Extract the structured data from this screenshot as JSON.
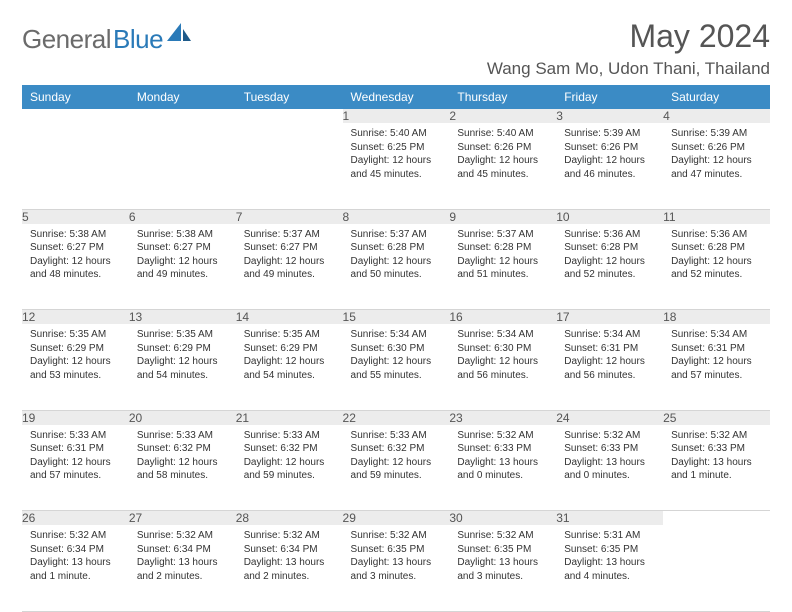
{
  "logo": {
    "gray": "General",
    "blue": "Blue"
  },
  "title": "May 2024",
  "location": "Wang Sam Mo, Udon Thani, Thailand",
  "weekdays": [
    "Sunday",
    "Monday",
    "Tuesday",
    "Wednesday",
    "Thursday",
    "Friday",
    "Saturday"
  ],
  "colors": {
    "header_bg": "#3b8bc5",
    "daynum_bg": "#ececec",
    "logo_gray": "#6b6b6b",
    "logo_blue": "#2a7ab8"
  },
  "weeks": [
    [
      null,
      null,
      null,
      {
        "n": "1",
        "sr": "5:40 AM",
        "ss": "6:25 PM",
        "dl": "12 hours and 45 minutes."
      },
      {
        "n": "2",
        "sr": "5:40 AM",
        "ss": "6:26 PM",
        "dl": "12 hours and 45 minutes."
      },
      {
        "n": "3",
        "sr": "5:39 AM",
        "ss": "6:26 PM",
        "dl": "12 hours and 46 minutes."
      },
      {
        "n": "4",
        "sr": "5:39 AM",
        "ss": "6:26 PM",
        "dl": "12 hours and 47 minutes."
      }
    ],
    [
      {
        "n": "5",
        "sr": "5:38 AM",
        "ss": "6:27 PM",
        "dl": "12 hours and 48 minutes."
      },
      {
        "n": "6",
        "sr": "5:38 AM",
        "ss": "6:27 PM",
        "dl": "12 hours and 49 minutes."
      },
      {
        "n": "7",
        "sr": "5:37 AM",
        "ss": "6:27 PM",
        "dl": "12 hours and 49 minutes."
      },
      {
        "n": "8",
        "sr": "5:37 AM",
        "ss": "6:28 PM",
        "dl": "12 hours and 50 minutes."
      },
      {
        "n": "9",
        "sr": "5:37 AM",
        "ss": "6:28 PM",
        "dl": "12 hours and 51 minutes."
      },
      {
        "n": "10",
        "sr": "5:36 AM",
        "ss": "6:28 PM",
        "dl": "12 hours and 52 minutes."
      },
      {
        "n": "11",
        "sr": "5:36 AM",
        "ss": "6:28 PM",
        "dl": "12 hours and 52 minutes."
      }
    ],
    [
      {
        "n": "12",
        "sr": "5:35 AM",
        "ss": "6:29 PM",
        "dl": "12 hours and 53 minutes."
      },
      {
        "n": "13",
        "sr": "5:35 AM",
        "ss": "6:29 PM",
        "dl": "12 hours and 54 minutes."
      },
      {
        "n": "14",
        "sr": "5:35 AM",
        "ss": "6:29 PM",
        "dl": "12 hours and 54 minutes."
      },
      {
        "n": "15",
        "sr": "5:34 AM",
        "ss": "6:30 PM",
        "dl": "12 hours and 55 minutes."
      },
      {
        "n": "16",
        "sr": "5:34 AM",
        "ss": "6:30 PM",
        "dl": "12 hours and 56 minutes."
      },
      {
        "n": "17",
        "sr": "5:34 AM",
        "ss": "6:31 PM",
        "dl": "12 hours and 56 minutes."
      },
      {
        "n": "18",
        "sr": "5:34 AM",
        "ss": "6:31 PM",
        "dl": "12 hours and 57 minutes."
      }
    ],
    [
      {
        "n": "19",
        "sr": "5:33 AM",
        "ss": "6:31 PM",
        "dl": "12 hours and 57 minutes."
      },
      {
        "n": "20",
        "sr": "5:33 AM",
        "ss": "6:32 PM",
        "dl": "12 hours and 58 minutes."
      },
      {
        "n": "21",
        "sr": "5:33 AM",
        "ss": "6:32 PM",
        "dl": "12 hours and 59 minutes."
      },
      {
        "n": "22",
        "sr": "5:33 AM",
        "ss": "6:32 PM",
        "dl": "12 hours and 59 minutes."
      },
      {
        "n": "23",
        "sr": "5:32 AM",
        "ss": "6:33 PM",
        "dl": "13 hours and 0 minutes."
      },
      {
        "n": "24",
        "sr": "5:32 AM",
        "ss": "6:33 PM",
        "dl": "13 hours and 0 minutes."
      },
      {
        "n": "25",
        "sr": "5:32 AM",
        "ss": "6:33 PM",
        "dl": "13 hours and 1 minute."
      }
    ],
    [
      {
        "n": "26",
        "sr": "5:32 AM",
        "ss": "6:34 PM",
        "dl": "13 hours and 1 minute."
      },
      {
        "n": "27",
        "sr": "5:32 AM",
        "ss": "6:34 PM",
        "dl": "13 hours and 2 minutes."
      },
      {
        "n": "28",
        "sr": "5:32 AM",
        "ss": "6:34 PM",
        "dl": "13 hours and 2 minutes."
      },
      {
        "n": "29",
        "sr": "5:32 AM",
        "ss": "6:35 PM",
        "dl": "13 hours and 3 minutes."
      },
      {
        "n": "30",
        "sr": "5:32 AM",
        "ss": "6:35 PM",
        "dl": "13 hours and 3 minutes."
      },
      {
        "n": "31",
        "sr": "5:31 AM",
        "ss": "6:35 PM",
        "dl": "13 hours and 4 minutes."
      },
      null
    ]
  ],
  "labels": {
    "sunrise": "Sunrise:",
    "sunset": "Sunset:",
    "daylight": "Daylight:"
  }
}
